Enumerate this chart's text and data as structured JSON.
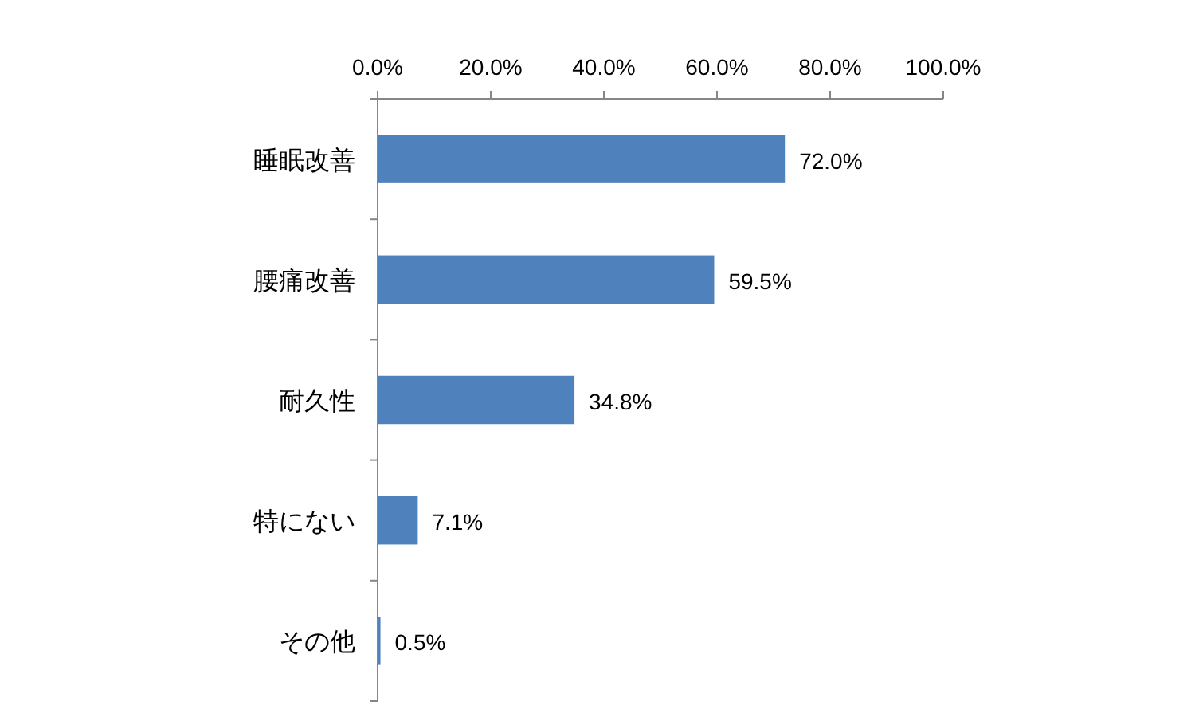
{
  "chart_data": {
    "type": "bar",
    "orientation": "horizontal",
    "categories": [
      "睡眠改善",
      "腰痛改善",
      "耐久性",
      "特にない",
      "その他"
    ],
    "values": [
      72.0,
      59.5,
      34.8,
      7.1,
      0.5
    ],
    "color": "#4f81bd",
    "value_labels": [
      "72.0%",
      "59.5%",
      "34.8%",
      "7.1%",
      "0.5%"
    ],
    "xlim": [
      0,
      100
    ],
    "xticks": [
      {
        "value": 0,
        "label": "0.0%"
      },
      {
        "value": 20,
        "label": "20.0%"
      },
      {
        "value": 40,
        "label": "40.0%"
      },
      {
        "value": 60,
        "label": "60.0%"
      },
      {
        "value": 80,
        "label": "80.0%"
      },
      {
        "value": 100,
        "label": "100.0%"
      }
    ],
    "grid": false
  }
}
